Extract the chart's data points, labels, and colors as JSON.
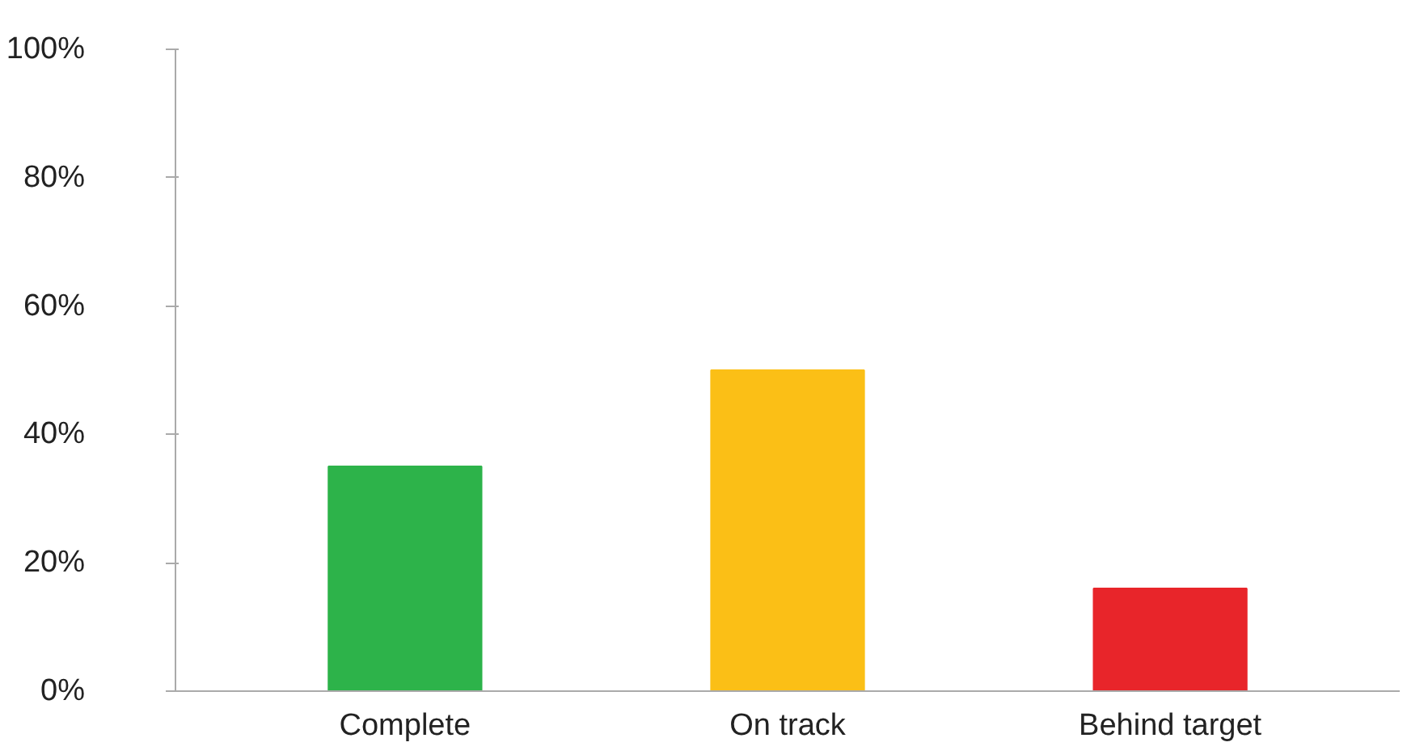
{
  "chart_data": {
    "type": "bar",
    "categories": [
      "Complete",
      "On track",
      "Behind target"
    ],
    "values": [
      35,
      50,
      16
    ],
    "colors": [
      "#2db34a",
      "#fbbf16",
      "#e8252a"
    ],
    "ylim": [
      0,
      100
    ],
    "yticks": [
      {
        "value": 0,
        "label": "0%"
      },
      {
        "value": 20,
        "label": "20%"
      },
      {
        "value": 40,
        "label": "40%"
      },
      {
        "value": 60,
        "label": "60%"
      },
      {
        "value": 80,
        "label": "80%"
      },
      {
        "value": 100,
        "label": "100%"
      }
    ],
    "grid": false
  }
}
